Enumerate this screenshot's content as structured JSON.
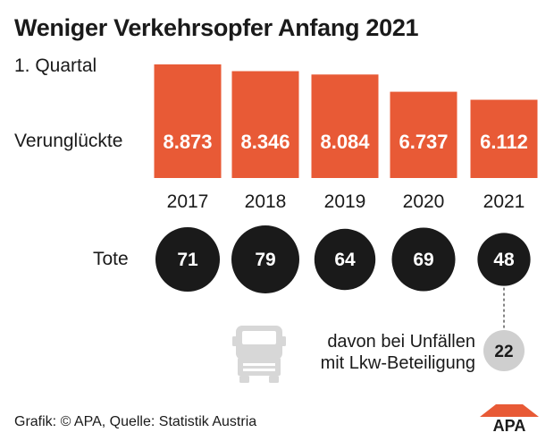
{
  "chart_data": {
    "type": "bar",
    "title": "Weniger Verkehrsopfer Anfang 2021",
    "subtitle": "1. Quartal",
    "categories": [
      "2017",
      "2018",
      "2019",
      "2020",
      "2021"
    ],
    "series": [
      {
        "name": "Verunglückte",
        "values": [
          8873,
          8346,
          8084,
          6737,
          6112
        ],
        "value_labels": [
          "8.873",
          "8.346",
          "8.084",
          "6.737",
          "6.112"
        ]
      },
      {
        "name": "Tote",
        "values": [
          71,
          79,
          64,
          69,
          48
        ],
        "value_labels": [
          "71",
          "79",
          "64",
          "69",
          "48"
        ]
      }
    ],
    "sub_value": {
      "category": "2021",
      "value": 22,
      "label": "22",
      "annotation_lines": [
        "davon bei Unfällen",
        "mit Lkw-Beteiligung"
      ]
    },
    "bar_color": "#e85a36",
    "circle_color": "#1a1a1a",
    "sub_circle_color": "#cfcfcf"
  },
  "footer": {
    "source": "Grafik: © APA, Quelle: Statistik Austria",
    "logo_text": "APA"
  },
  "icons": {
    "truck": "truck-icon"
  }
}
